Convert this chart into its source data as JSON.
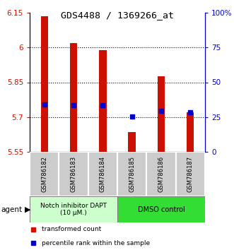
{
  "title": "GDS4488 / 1369266_at",
  "samples": [
    "GSM786182",
    "GSM786183",
    "GSM786184",
    "GSM786185",
    "GSM786186",
    "GSM786187"
  ],
  "bar_bottoms": [
    5.55,
    5.55,
    5.55,
    5.55,
    5.55,
    5.55
  ],
  "bar_tops": [
    6.135,
    6.02,
    5.99,
    5.635,
    5.875,
    5.72
  ],
  "percentile_values": [
    5.755,
    5.752,
    5.752,
    5.703,
    5.727,
    5.722
  ],
  "ylim": [
    5.55,
    6.15
  ],
  "yticks_left": [
    5.55,
    5.7,
    5.85,
    6.0,
    6.15
  ],
  "ytick_labels_left": [
    "5.55",
    "5.7",
    "5.85",
    "6",
    "6.15"
  ],
  "yticks_right": [
    5.55,
    5.7,
    5.85,
    6.0,
    6.15
  ],
  "ytick_labels_right": [
    "0",
    "25",
    "50",
    "75",
    "100%"
  ],
  "bar_color": "#cc1100",
  "percentile_color": "#0000cc",
  "grid_yticks": [
    5.7,
    5.85,
    6.0
  ],
  "group1_label": "Notch inhibitor DAPT\n(10 μM.)",
  "group2_label": "DMSO control",
  "group1_color": "#ccffcc",
  "group2_color": "#33dd33",
  "sample_box_color": "#cccccc",
  "legend_red_label": "transformed count",
  "legend_blue_label": "percentile rank within the sample",
  "bar_width": 0.25
}
